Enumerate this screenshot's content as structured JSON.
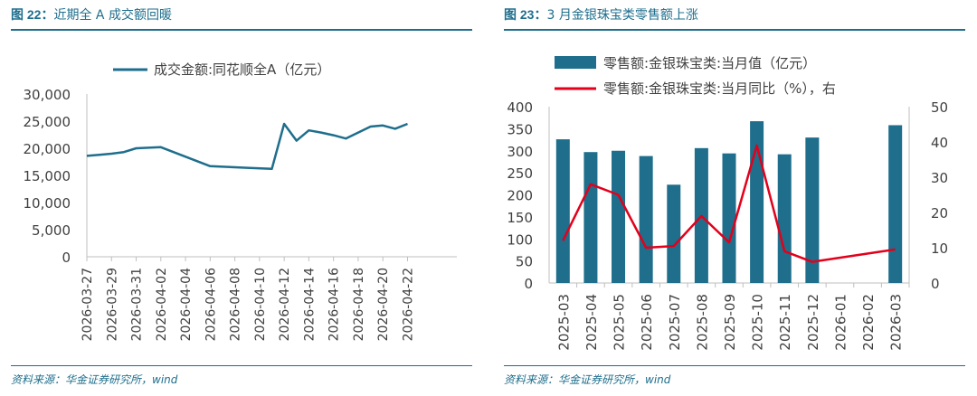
{
  "left": {
    "fig_label": "图 22：",
    "title": "近期全 A 成交额回暖",
    "source": "资料来源：华金证券研究所，wind"
  },
  "right": {
    "fig_label": "图 23：",
    "title": "3 月金银珠宝类零售额上涨",
    "source": "资料来源：华金证券研究所，wind"
  },
  "chart_data": [
    {
      "type": "line",
      "legend": [
        "成交金额:同花顺全A（亿元）"
      ],
      "series": [
        {
          "name": "成交金额:同花顺全A（亿元）",
          "color": "#1e6e8c",
          "x": [
            0,
            1,
            2,
            3,
            4,
            6,
            10,
            11,
            12,
            13,
            15,
            16,
            17,
            18,
            19,
            20,
            21,
            23,
            24,
            25,
            26
          ],
          "values": [
            18600,
            18800,
            19000,
            19300,
            20000,
            20200,
            16700,
            16600,
            16500,
            16400,
            16200,
            24500,
            21400,
            23300,
            22900,
            22400,
            21800,
            24000,
            24200,
            23600,
            24500
          ]
        }
      ],
      "x_points": [
        0,
        1,
        2,
        3,
        4,
        5,
        6,
        7,
        8,
        9,
        10,
        11,
        12,
        13,
        14,
        15,
        16,
        17,
        18,
        19,
        20,
        21,
        22,
        23,
        24,
        25,
        26,
        27,
        28,
        29,
        30
      ],
      "x_ticks": [
        "2026-03-27",
        "2026-03-29",
        "2026-03-31",
        "2026-04-02",
        "2026-04-04",
        "2026-04-06",
        "2026-04-08",
        "2026-04-10",
        "2026-04-12",
        "2026-04-14",
        "2026-04-16",
        "2026-04-18",
        "2026-04-20",
        "2026-04-22"
      ],
      "y_ticks": [
        "30,000",
        "25,000",
        "20,000",
        "15,000",
        "10,000",
        "5,000",
        "0"
      ],
      "ylim": [
        0,
        30000
      ]
    },
    {
      "type": "bar+line",
      "categories": [
        "2025-03",
        "2025-04",
        "2025-05",
        "2025-06",
        "2025-07",
        "2025-08",
        "2025-09",
        "2025-10",
        "2025-11",
        "2025-12",
        "2026-01",
        "2026-02",
        "2026-03"
      ],
      "series": [
        {
          "name": "零售额:金银珠宝类:当月值（亿元）",
          "type": "bar",
          "axis": "left",
          "color": "#1e6e8c",
          "values": [
            326,
            297,
            300,
            288,
            223,
            306,
            294,
            367,
            292,
            330,
            null,
            null,
            358
          ]
        },
        {
          "name": "零售额:金银珠宝类:当月同比（%），右",
          "type": "line",
          "axis": "right",
          "color": "#e3001b",
          "points": [
            [
              0,
              12
            ],
            [
              1,
              28
            ],
            [
              2,
              25
            ],
            [
              3,
              10
            ],
            [
              4,
              10.5
            ],
            [
              5,
              19
            ],
            [
              6,
              11.5
            ],
            [
              7,
              39
            ],
            [
              8,
              9
            ],
            [
              9,
              6
            ],
            [
              12,
              9.5
            ]
          ]
        }
      ],
      "left_ylim": [
        0,
        400
      ],
      "right_ylim": [
        0,
        50
      ],
      "left_ticks": [
        "400",
        "350",
        "300",
        "250",
        "200",
        "150",
        "100",
        "50",
        "0"
      ],
      "right_ticks": [
        "50",
        "40",
        "30",
        "20",
        "10",
        "0"
      ]
    }
  ]
}
